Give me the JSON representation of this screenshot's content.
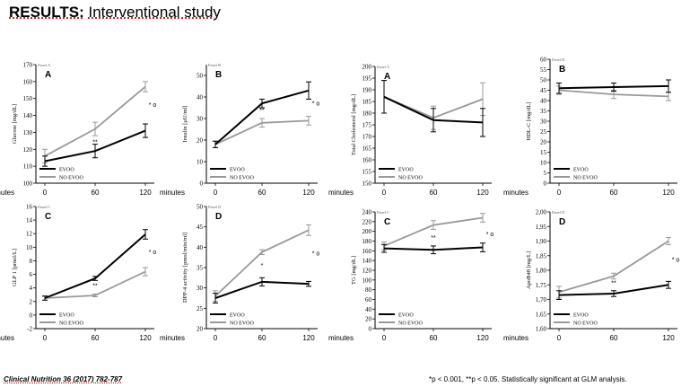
{
  "title": {
    "bold": "RESULTS:",
    "rest": "Interventional study"
  },
  "citation": "Clinical Nutrition 36 (2017) 782‑787",
  "footnote": "*p < 0.001, **p < 0.05. Statistically significant at GLM analysis.",
  "colors": {
    "evoo": "#000000",
    "no_evoo": "#999999"
  },
  "chart_data": [
    {
      "id": "glucose",
      "type": "line",
      "letter": "A",
      "tag": "Panel A",
      "ylabel": "Glucose [mg/dL]",
      "xlabel": "minutes",
      "ylim": [
        100,
        170
      ],
      "yticks": [
        100,
        110,
        120,
        130,
        140,
        150,
        160,
        170
      ],
      "xticks": [
        0,
        60,
        120
      ],
      "series": [
        {
          "name": "EVOO",
          "values": [
            113,
            119,
            131
          ],
          "err": [
            3,
            4,
            4
          ]
        },
        {
          "name": "NO EVOO",
          "values": [
            116,
            132,
            157
          ],
          "err": [
            4,
            4,
            3
          ]
        }
      ],
      "annotations": [
        {
          "text": "**",
          "x": 60,
          "y": 123
        },
        {
          "text": "* o",
          "x": 120,
          "y": 145
        }
      ],
      "legend": "bottom-left"
    },
    {
      "id": "insulin",
      "type": "line",
      "letter": "B",
      "tag": "Panel B",
      "ylabel": "Insulin [µU/ml]",
      "xlabel": "minutes",
      "ylim": [
        0,
        55
      ],
      "yticks": [
        0,
        10,
        20,
        30,
        40,
        50
      ],
      "xticks": [
        0,
        60,
        120
      ],
      "series": [
        {
          "name": "EVOO",
          "values": [
            18,
            37,
            43
          ],
          "err": [
            1.5,
            2,
            4
          ]
        },
        {
          "name": "NO EVOO",
          "values": [
            18,
            28,
            29
          ],
          "err": [
            1.5,
            2,
            2
          ]
        }
      ],
      "annotations": [
        {
          "text": "**",
          "x": 60,
          "y": 33
        },
        {
          "text": "* o",
          "x": 120,
          "y": 36
        }
      ],
      "legend": "bottom-left"
    },
    {
      "id": "total-cholesterol",
      "type": "line",
      "letter": "A",
      "tag": "Panel A",
      "ylabel": "Total Cholesterol [mg/dL]",
      "xlabel": "minutes",
      "ylim": [
        150,
        200
      ],
      "yticks": [
        150,
        155,
        160,
        165,
        170,
        175,
        180,
        185,
        190,
        195,
        200
      ],
      "xticks": [
        0,
        60,
        120
      ],
      "series": [
        {
          "name": "EVOO",
          "values": [
            187,
            177,
            176
          ],
          "err": [
            7,
            5,
            6
          ]
        },
        {
          "name": "NO EVOO",
          "values": [
            187,
            178,
            186
          ],
          "err": [
            7,
            5,
            7
          ]
        }
      ],
      "annotations": [],
      "legend": "bottom-left"
    },
    {
      "id": "hdl-c",
      "type": "line",
      "letter": "B",
      "tag": "Panel B",
      "ylabel": "HDL-C [mg/dL]",
      "xlabel": "minutes",
      "ylim": [
        0,
        60
      ],
      "yticks": [
        0,
        5,
        10,
        15,
        20,
        25,
        30,
        35,
        40,
        45,
        50,
        55,
        60
      ],
      "xticks": [
        0,
        60,
        120
      ],
      "series": [
        {
          "name": "EVOO",
          "values": [
            46,
            46.5,
            47
          ],
          "err": [
            2.5,
            2,
            3
          ]
        },
        {
          "name": "NO EVOO",
          "values": [
            45,
            43,
            42
          ],
          "err": [
            2,
            2,
            2
          ]
        }
      ],
      "annotations": [],
      "legend": "bottom-left"
    },
    {
      "id": "glp-1",
      "type": "line",
      "letter": "C",
      "tag": "Panel C",
      "ylabel": "GLP 1 [pmol/L]",
      "xlabel": "minutes",
      "ylim": [
        -2,
        16
      ],
      "yticks": [
        -2,
        0,
        2,
        4,
        6,
        8,
        10,
        12,
        14,
        16
      ],
      "xticks": [
        0,
        60,
        120
      ],
      "series": [
        {
          "name": "EVOO",
          "values": [
            2.5,
            5.4,
            11.9
          ],
          "err": [
            0.3,
            0.3,
            0.7
          ]
        },
        {
          "name": "NO EVOO",
          "values": [
            2.5,
            2.9,
            6.4
          ],
          "err": [
            0.3,
            0.2,
            0.6
          ]
        }
      ],
      "annotations": [
        {
          "text": "**",
          "x": 60,
          "y": 4
        },
        {
          "text": "* o",
          "x": 120,
          "y": 9
        }
      ],
      "legend": "bottom-left"
    },
    {
      "id": "dpp-4",
      "type": "line",
      "letter": "D",
      "tag": "Panel D",
      "ylabel": "DPP-4 activity [pmol/min/ml]",
      "xlabel": "minutes",
      "ylim": [
        20,
        50
      ],
      "yticks": [
        20,
        25,
        30,
        35,
        40,
        45,
        50
      ],
      "xticks": [
        0,
        60,
        120
      ],
      "series": [
        {
          "name": "EVOO",
          "values": [
            27.5,
            31.5,
            31
          ],
          "err": [
            1.2,
            1,
            0.6
          ]
        },
        {
          "name": "NO EVOO",
          "values": [
            28,
            38.8,
            44.2
          ],
          "err": [
            1.3,
            0.6,
            1.3
          ]
        }
      ],
      "annotations": [
        {
          "text": "*",
          "x": 60,
          "y": 35
        },
        {
          "text": "* o",
          "x": 120,
          "y": 38
        }
      ],
      "legend": "bottom-left"
    },
    {
      "id": "tg",
      "type": "line",
      "letter": "C",
      "tag": "Panel C",
      "ylabel": "TG [mg/dL]",
      "xlabel": "minutes",
      "ylim": [
        0,
        240
      ],
      "yticks": [
        0,
        20,
        40,
        60,
        80,
        100,
        120,
        140,
        160,
        180,
        200,
        220,
        240
      ],
      "xticks": [
        0,
        60,
        120
      ],
      "series": [
        {
          "name": "EVOO",
          "values": [
            165,
            162,
            167
          ],
          "err": [
            8,
            8,
            9
          ]
        },
        {
          "name": "NO EVOO",
          "values": [
            170,
            213,
            228
          ],
          "err": [
            8,
            9,
            9
          ]
        }
      ],
      "annotations": [
        {
          "text": "**",
          "x": 60,
          "y": 183
        },
        {
          "text": "* o",
          "x": 120,
          "y": 190
        }
      ],
      "legend": "bottom-left"
    },
    {
      "id": "apo-b48",
      "type": "line",
      "letter": "D",
      "tag": "Panel D",
      "ylabel": "ApoB48 [mg/L]",
      "xlabel": "minutes",
      "ylim": [
        1.6,
        2.0
      ],
      "yticks": [
        1.6,
        1.65,
        1.7,
        1.75,
        1.8,
        1.85,
        1.9,
        1.95,
        2.0
      ],
      "xticks": [
        0,
        60,
        120
      ],
      "tick_labels": [
        "1,60",
        "1,65",
        "1,70",
        "1,75",
        "1,80",
        "1,85",
        "1,90",
        "1,95",
        "2,00"
      ],
      "series": [
        {
          "name": "EVOO",
          "values": [
            1.715,
            1.72,
            1.75
          ],
          "err": [
            0.015,
            0.01,
            0.012
          ]
        },
        {
          "name": "NO EVOO",
          "values": [
            1.725,
            1.78,
            1.9
          ],
          "err": [
            0.02,
            0.01,
            0.012
          ]
        }
      ],
      "annotations": [
        {
          "text": "**",
          "x": 60,
          "y": 1.75
        },
        {
          "text": "* o",
          "x": 120,
          "y": 1.83
        }
      ],
      "legend": "bottom-left"
    }
  ]
}
